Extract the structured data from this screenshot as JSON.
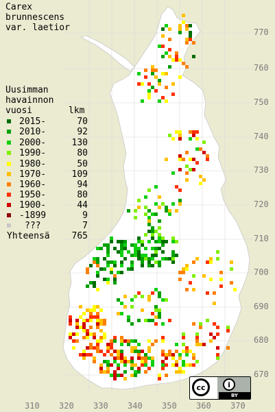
{
  "title": [
    "Carex",
    "brunnescens",
    "var. laetior"
  ],
  "legend": {
    "heading": [
      "Uusimman",
      "havainnon"
    ],
    "col_year": "vuosi",
    "col_count": "lkm",
    "items": [
      {
        "label": "2015-",
        "count": "70",
        "color": "#006e00"
      },
      {
        "label": "2010-",
        "count": "92",
        "color": "#00a000"
      },
      {
        "label": "2000-",
        "count": "130",
        "color": "#10d010"
      },
      {
        "label": "1990-",
        "count": "80",
        "color": "#80f000"
      },
      {
        "label": "1980-",
        "count": "50",
        "color": "#ffff00"
      },
      {
        "label": "1970-",
        "count": "109",
        "color": "#ffc000"
      },
      {
        "label": "1960-",
        "count": "94",
        "color": "#ff8000"
      },
      {
        "label": "1950-",
        "count": "80",
        "color": "#ff3000"
      },
      {
        "label": "1900-",
        "count": "44",
        "color": "#d00000"
      },
      {
        "label": "-1899",
        "count": "9",
        "color": "#900000"
      },
      {
        "label": "???",
        "count": "7",
        "color": "#c8c8c8"
      }
    ],
    "total_label": "Yhteensä",
    "total_count": "765"
  },
  "y_ticks": [
    "770",
    "760",
    "750",
    "740",
    "730",
    "720",
    "710",
    "700",
    "690",
    "680",
    "670"
  ],
  "x_ticks": [
    "310",
    "320",
    "330",
    "340",
    "350",
    "360",
    "370"
  ],
  "license": {
    "cc": "cc",
    "by_icon": "i",
    "by": "BY"
  },
  "colors": {
    "background": "#ebebd2",
    "land": "#ffffff",
    "grid": "#d2d2d2",
    "border": "#c8c8c8"
  }
}
